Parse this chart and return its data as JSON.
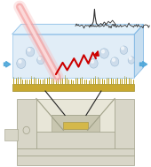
{
  "fig_width": 1.7,
  "fig_height": 1.89,
  "dpi": 100,
  "bg_color": "#ffffff",
  "arrow_color": "#4da6d9",
  "laser_color": "#f4a0a0",
  "raman_color": "#cc0000",
  "spectrum_color": "#333333",
  "nanostructure_color": "#b8a020",
  "sphere_color": "#c8d8e8",
  "device_color": "#d8d6c8",
  "device_edge": "#a0a088",
  "device_inner": "#e8e6d8",
  "device_recess": "#c8c6b0",
  "gold_center": "#d4b84a",
  "line_connector_color": "#222222",
  "box_face_color": "#c5ddf0",
  "box_edge_color": "#6aabe0",
  "gold_base_color": "#c8a830",
  "gold_edge_color": "#a09030"
}
